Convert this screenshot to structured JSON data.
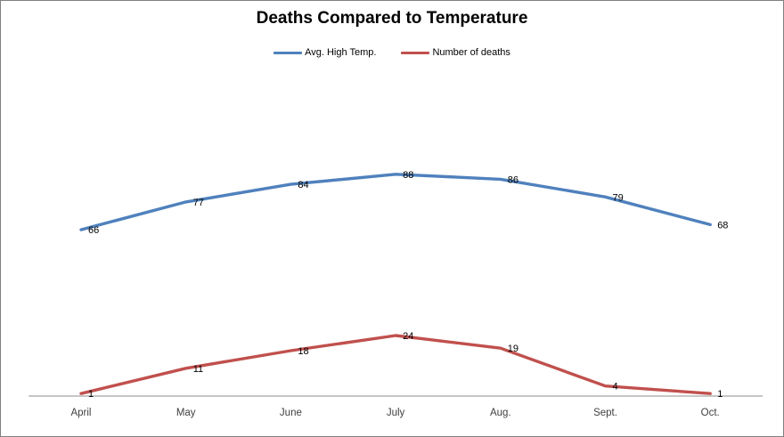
{
  "title": "Deaths Compared to Temperature",
  "chart_data": {
    "type": "line",
    "categories": [
      "April",
      "May",
      "June",
      "July",
      "Aug.",
      "Sept.",
      "Oct."
    ],
    "series": [
      {
        "name": "Avg. High Temp.",
        "color": "#4F81BD",
        "values": [
          66,
          77,
          84,
          88,
          86,
          79,
          68
        ]
      },
      {
        "name": "Number of deaths",
        "color": "#C0504D",
        "values": [
          1,
          11,
          18,
          24,
          19,
          4,
          1
        ]
      }
    ],
    "ylim": [
      0,
      125
    ],
    "grid": false,
    "legend_position": "top",
    "data_label_position": "right",
    "axis_color": "#8C8C8C",
    "data_label_color": "#000000",
    "tick_label_color": "#3F3F3F",
    "background_color": "#FFFFFF",
    "border_color": "#808080"
  }
}
